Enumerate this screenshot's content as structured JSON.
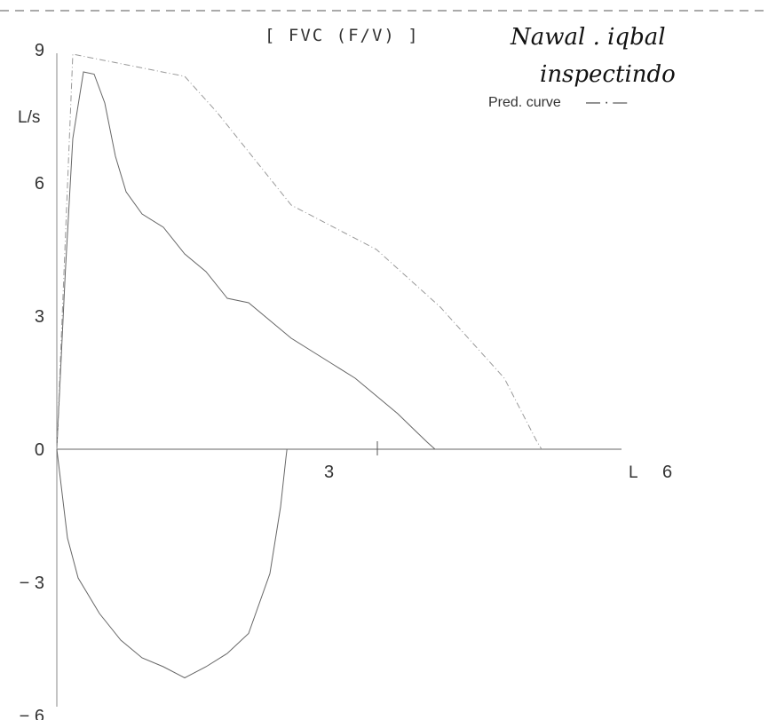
{
  "chart_data": {
    "type": "line",
    "title": "[ FVC (F/V) ]",
    "ylabel": "L/s",
    "xlabel": "L",
    "xlim": [
      0,
      6
    ],
    "ylim": [
      -6,
      9
    ],
    "x_ticks": [
      "3",
      "6"
    ],
    "y_ticks": [
      "9",
      "6",
      "3",
      "0",
      "-3",
      "-6"
    ],
    "legend_text": "Pred. curve",
    "legend_symbol": "— · —",
    "annotation_name": "Nawal . iqbal",
    "annotation_note": "inspectindo",
    "series": [
      {
        "style": "solid",
        "points": [
          [
            0,
            0
          ],
          [
            0.08,
            4.0
          ],
          [
            0.15,
            7.0
          ],
          [
            0.25,
            8.5
          ],
          [
            0.35,
            8.45
          ],
          [
            0.45,
            7.8
          ],
          [
            0.55,
            6.6
          ],
          [
            0.65,
            5.8
          ],
          [
            0.8,
            5.3
          ],
          [
            1.0,
            5.0
          ],
          [
            1.2,
            4.4
          ],
          [
            1.4,
            4.0
          ],
          [
            1.6,
            3.4
          ],
          [
            1.8,
            3.3
          ],
          [
            2.0,
            2.9
          ],
          [
            2.2,
            2.5
          ],
          [
            2.4,
            2.2
          ],
          [
            2.6,
            1.9
          ],
          [
            2.8,
            1.6
          ],
          [
            3.0,
            1.2
          ],
          [
            3.2,
            0.8
          ],
          [
            3.35,
            0.45
          ],
          [
            3.48,
            0.15
          ],
          [
            3.55,
            0
          ]
        ]
      },
      {
        "style": "solid",
        "points": [
          [
            0,
            0
          ],
          [
            0.1,
            -2.0
          ],
          [
            0.2,
            -2.9
          ],
          [
            0.4,
            -3.7
          ],
          [
            0.6,
            -4.3
          ],
          [
            0.8,
            -4.7
          ],
          [
            1.0,
            -4.9
          ],
          [
            1.2,
            -5.15
          ],
          [
            1.4,
            -4.9
          ],
          [
            1.6,
            -4.6
          ],
          [
            1.8,
            -4.15
          ],
          [
            2.0,
            -2.8
          ],
          [
            2.1,
            -1.3
          ],
          [
            2.15,
            -0.2
          ],
          [
            2.16,
            0
          ]
        ]
      },
      {
        "name": "Pred. curve",
        "style": "dashdot",
        "points": [
          [
            0,
            0
          ],
          [
            0.15,
            8.9
          ],
          [
            1.2,
            8.4
          ],
          [
            1.5,
            7.6
          ],
          [
            2.2,
            5.5
          ],
          [
            3.0,
            4.5
          ],
          [
            3.6,
            3.2
          ],
          [
            4.2,
            1.6
          ],
          [
            4.5,
            0.2
          ],
          [
            4.55,
            0
          ]
        ]
      }
    ]
  }
}
